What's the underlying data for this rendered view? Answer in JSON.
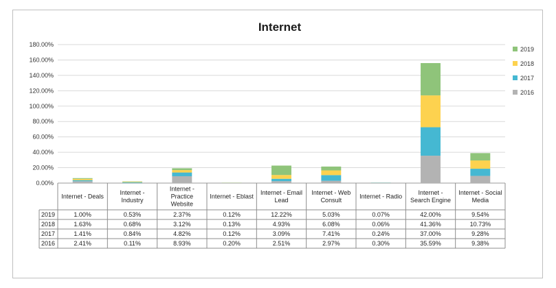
{
  "chart_data": {
    "type": "bar",
    "stacked": true,
    "title": "Internet",
    "categories": [
      [
        "Internet - Deals"
      ],
      [
        "Internet -",
        "Industry"
      ],
      [
        "Internet -",
        "Practice",
        "Website"
      ],
      [
        "Internet - Eblast"
      ],
      [
        "Internet - Email",
        "Lead"
      ],
      [
        "Internet - Web",
        "Consult"
      ],
      [
        "Internet - Radio"
      ],
      [
        "Internet -",
        "Search Engine"
      ],
      [
        "Internet - Social",
        "Media"
      ]
    ],
    "series": [
      {
        "name": "2016",
        "color": "#b3b3b3",
        "values": [
          2.41,
          0.11,
          8.93,
          0.2,
          2.51,
          2.97,
          0.3,
          35.59,
          9.38
        ],
        "labels": [
          "2.41%",
          "0.11%",
          "8.93%",
          "0.20%",
          "2.51%",
          "2.97%",
          "0.30%",
          "35.59%",
          "9.38%"
        ]
      },
      {
        "name": "2017",
        "color": "#45b8d2",
        "values": [
          1.41,
          0.84,
          4.82,
          0.12,
          3.09,
          7.41,
          0.24,
          37.0,
          9.28
        ],
        "labels": [
          "1.41%",
          "0.84%",
          "4.82%",
          "0.12%",
          "3.09%",
          "7.41%",
          "0.24%",
          "37.00%",
          "9.28%"
        ]
      },
      {
        "name": "2018",
        "color": "#fdd24f",
        "values": [
          1.63,
          0.68,
          3.12,
          0.13,
          4.93,
          6.08,
          0.06,
          41.36,
          10.73
        ],
        "labels": [
          "1.63%",
          "0.68%",
          "3.12%",
          "0.13%",
          "4.93%",
          "6.08%",
          "0.06%",
          "41.36%",
          "10.73%"
        ]
      },
      {
        "name": "2019",
        "color": "#8fc47a",
        "values": [
          1.0,
          0.53,
          2.37,
          0.12,
          12.22,
          5.03,
          0.07,
          42.0,
          9.54
        ],
        "labels": [
          "1.00%",
          "0.53%",
          "2.37%",
          "0.12%",
          "12.22%",
          "5.03%",
          "0.07%",
          "42.00%",
          "9.54%"
        ]
      }
    ],
    "table_row_order": [
      "2019",
      "2018",
      "2017",
      "2016"
    ],
    "legend_order": [
      "2019",
      "2018",
      "2017",
      "2016"
    ],
    "ylim": [
      0,
      180
    ],
    "yticks": [
      0,
      20,
      40,
      60,
      80,
      100,
      120,
      140,
      160,
      180
    ],
    "ytick_labels": [
      "0.00%",
      "20.00%",
      "40.00%",
      "60.00%",
      "80.00%",
      "100.00%",
      "120.00%",
      "140.00%",
      "160.00%",
      "180.00%"
    ],
    "grid": true,
    "legend_position": "right",
    "data_table": true
  }
}
